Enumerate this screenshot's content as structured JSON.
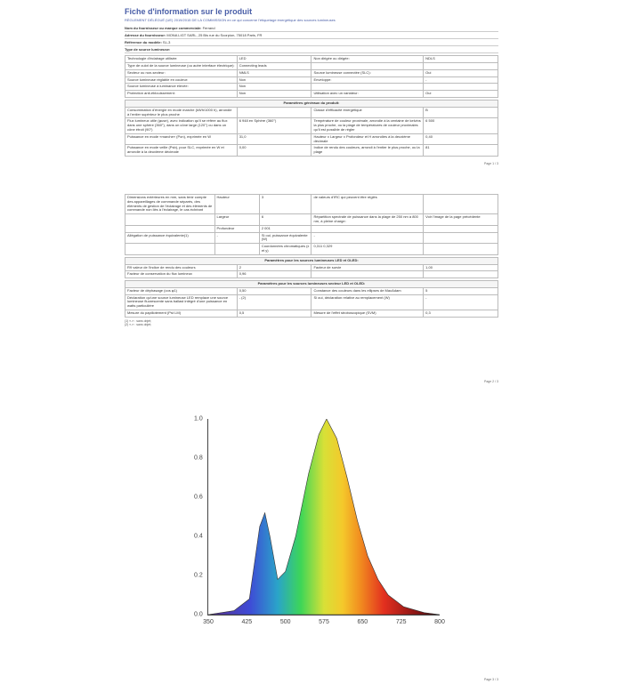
{
  "title": "Fiche d'information sur le produit",
  "subtitle": "RÈGLEMENT DÉLÉGUÉ (UE) 2019/2015 DE LA COMMISSION en ce qui concerne l'étiquetage énergétique des sources lumineuses",
  "meta": {
    "supplier_label": "Nom du fournisseur ou marque commerciale:",
    "supplier_value": "Ferrand",
    "address_label": "Adresse du fournisseur:",
    "address_value": "MONA LIGT SARL, 25 Bis rue du Scorpion, 75018 Paris, FR",
    "model_label": "Référence du modèle:",
    "model_value": "SL-3"
  },
  "type_header": "Type de source lumineuse:",
  "table1": [
    [
      "Technologie d'éclairage utilisée:",
      "LED",
      "Non dirigée ou dirigée:",
      "NDLS"
    ],
    [
      "Type de culot de la source lumineuse (ou autre interface électrique):",
      "Connecting leads",
      "",
      ""
    ],
    [
      "Secteur ou non-secteur:",
      "NMLS",
      "Source lumineuse connectée (SLC):",
      "Oui"
    ],
    [
      "Source lumineuse réglable en couleur:",
      "Non",
      "Enveloppe:",
      "-"
    ],
    [
      "Source lumineuse à luminance élevée:",
      "Non",
      "",
      ""
    ],
    [
      "Protection anti-éblouissement:",
      "Non",
      "Utilisation avec un variateur:",
      "Oui"
    ]
  ],
  "gen_band": "Paramètres généraux du produit:",
  "table2": [
    [
      "Consommation d'énergie en mode marche (kWh/1000 h), arrondie à l'entier supérieur le plus proche",
      "",
      "Classe d'efficacité énergétique",
      "B"
    ],
    [
      "Flux lumineux utile (φuse), avec indication qu'il se réfère au flux dans une sphère (360°), dans un cône large (120°) ou dans un cône étroit (90°)",
      "6 948 en Sphère (360°)",
      "Température de couleur proximale, arrondie à la centaine de kelvins la plus proche, ou la plage de températures de couleur proximales qu'il est possible de régler",
      "6 500"
    ],
    [
      "Puissance en mode «marche» (Pon), exprimée en W",
      "31,0",
      "Hauteur x Largeur x Profondeur et H arrondies à la deuxième décimale",
      "0,40"
    ],
    [
      "Puissance en mode veille (Psb), pour SLC, exprimée en W et arrondie à la deuxième décimale",
      "0,00",
      "Indice de rendu des couleurs, arrondi à l'entier le plus proche, ou la plage",
      "81"
    ]
  ],
  "page1": "Page 1 / 3",
  "table3": [
    [
      "Dimensions extérieures en mm, sans tenir compte des appareillages de commande séparés, des éléments de gestion de l'éclairage et des éléments de commande non liés à l'éclairage, le cas échéant",
      "Hauteur",
      "3",
      "de valeurs d'IRC qui peuvent être réglés",
      ""
    ],
    [
      "",
      "Largeur",
      "6",
      "Répartition spectrale de puissance dans la plage de 250 nm à 800 nm, à pleine charge:",
      "Voir l'image de la page précédente"
    ],
    [
      "",
      "Profondeur",
      "2 001",
      "",
      ""
    ],
    [
      "Allégation de puissance équivalente(1)",
      "-",
      "Si oui, puissance équivalente (W)",
      "-"
    ],
    [
      "",
      "",
      "Coordonnées chromatiques (x et y)",
      "0,311\n0,329"
    ]
  ],
  "led_band": "Paramètres pour les sources lumineuses LED et OLED:",
  "table4": [
    [
      "R9 valeur de l'indice de rendu des couleurs",
      "2",
      "Facteur de survie",
      "1,00"
    ],
    [
      "Facteur de conservation du flux lumineux",
      "0,96",
      "",
      ""
    ]
  ],
  "mains_band": "Paramètres pour les sources lumineuses secteur LED et OLED:",
  "table5": [
    [
      "Facteur de déphasage (cos φ1)",
      "0,50",
      "Constance des couleurs dans les ellipses de MacAdam",
      "5"
    ],
    [
      "Déclaration qu'une source lumineuse LED remplace une source lumineuse fluorescente sans ballast intégré d'une puissance en watts particulière",
      "- (2)",
      "Si oui, déclaration relative au remplacement (W)",
      "-"
    ],
    [
      "Mesure du papillotement (Pst LM)",
      "0,5",
      "Mesure de l'effet stroboscopique (SVM)",
      "0,3"
    ]
  ],
  "footnotes": [
    "(1)  «-» : sans objet;",
    "(2)  «-» : sans objet;"
  ],
  "page2": "Page 2 / 3",
  "page3": "Page 3 / 3",
  "chart": {
    "yticks": [
      0.0,
      0.2,
      0.4,
      0.6,
      0.8,
      1.0
    ],
    "xticks": [
      350,
      425,
      500,
      575,
      650,
      725,
      800
    ],
    "stops": [
      {
        "x": 0.0,
        "c": "#5a2f8f"
      },
      {
        "x": 0.18,
        "c": "#3e4bd6"
      },
      {
        "x": 0.3,
        "c": "#2aa4c9"
      },
      {
        "x": 0.4,
        "c": "#3dd657"
      },
      {
        "x": 0.5,
        "c": "#d8e037"
      },
      {
        "x": 0.58,
        "c": "#f4c92b"
      },
      {
        "x": 0.66,
        "c": "#f18a1f"
      },
      {
        "x": 0.76,
        "c": "#e22f1f"
      },
      {
        "x": 0.9,
        "c": "#8a1414"
      },
      {
        "x": 1.0,
        "c": "#3a0a0a"
      }
    ]
  }
}
